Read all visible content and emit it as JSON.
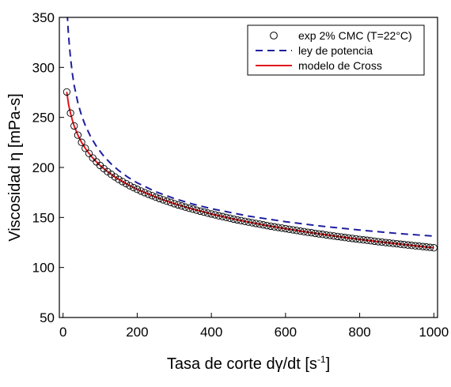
{
  "chart_data": {
    "type": "scatter",
    "xlabel": "Tasa de corte dγ/dt [s-1]",
    "xlabel_parts": {
      "main": "Tasa de corte dγ/dt [s",
      "sup": "-1",
      "close": "]"
    },
    "ylabel": "Viscosidad η [mPa-s]",
    "xlim": [
      -10,
      1010
    ],
    "ylim": [
      50,
      350
    ],
    "x_ticks": [
      0,
      200,
      400,
      600,
      800,
      1000
    ],
    "y_ticks": [
      50,
      100,
      150,
      200,
      250,
      300,
      350
    ],
    "grid": false,
    "legend_position": "top-right",
    "colors": {
      "experimental": "#000000",
      "power_law": "#1f1f9e",
      "cross": "#e0161b"
    },
    "series": [
      {
        "name": "exp 2% CMC (T=22°C)",
        "style": "open-circles",
        "x": [
          10,
          20,
          30,
          40,
          50,
          60,
          70,
          80,
          90,
          100,
          110,
          120,
          130,
          140,
          150,
          160,
          170,
          180,
          190,
          200,
          210,
          220,
          230,
          240,
          250,
          260,
          270,
          280,
          290,
          300,
          310,
          320,
          330,
          340,
          350,
          360,
          370,
          380,
          390,
          400,
          410,
          420,
          430,
          440,
          450,
          460,
          470,
          480,
          490,
          500,
          510,
          520,
          530,
          540,
          550,
          560,
          570,
          580,
          590,
          600,
          610,
          620,
          630,
          640,
          650,
          660,
          670,
          680,
          690,
          700,
          710,
          720,
          730,
          740,
          750,
          760,
          770,
          780,
          790,
          800,
          810,
          820,
          830,
          840,
          850,
          860,
          870,
          880,
          890,
          900,
          910,
          920,
          930,
          940,
          950,
          960,
          970,
          980,
          990,
          1000
        ],
        "y": [
          275.5,
          254.3,
          241.5,
          232.3,
          225.1,
          219.1,
          214.0,
          209.5,
          205.6,
          202.0,
          198.8,
          195.8,
          193.1,
          190.5,
          188.1,
          185.9,
          183.8,
          181.8,
          179.9,
          178.1,
          176.4,
          174.8,
          173.2,
          171.7,
          170.3,
          168.9,
          167.6,
          166.3,
          165.0,
          163.8,
          162.6,
          161.5,
          160.4,
          159.3,
          158.3,
          157.3,
          156.3,
          155.3,
          154.4,
          153.5,
          152.6,
          151.7,
          150.9,
          150.0,
          149.2,
          148.4,
          147.6,
          146.9,
          146.1,
          145.4,
          144.7,
          144.0,
          143.3,
          142.6,
          141.9,
          141.3,
          140.6,
          140.0,
          139.4,
          138.8,
          138.2,
          137.6,
          137.0,
          136.4,
          135.8,
          135.2,
          134.7,
          134.1,
          133.6,
          133.1,
          132.5,
          132.0,
          131.5,
          131.0,
          130.5,
          130.0,
          129.5,
          129.0,
          128.6,
          128.1,
          127.6,
          127.2,
          126.7,
          126.3,
          125.8,
          125.4,
          124.9,
          124.5,
          124.1,
          123.7,
          123.3,
          122.9,
          122.5,
          122.1,
          121.7,
          121.3,
          120.9,
          120.5,
          120.1,
          119.7
        ]
      },
      {
        "name": "ley de potencia",
        "style": "dashed-line",
        "x": [
          10,
          12,
          14,
          17,
          20,
          25,
          30,
          40,
          50,
          60,
          75,
          90,
          110,
          130,
          150,
          175,
          200,
          250,
          300,
          350,
          400,
          500,
          600,
          700,
          800,
          900,
          1000
        ],
        "y": [
          365.2,
          349.3,
          336.6,
          321.8,
          309.7,
          294.1,
          282.2,
          264.7,
          251.9,
          242.0,
          230.3,
          221.0,
          211.2,
          203.4,
          196.9,
          190.2,
          184.6,
          175.8,
          168.9,
          163.4,
          158.8,
          151.4,
          145.8,
          141.2,
          137.4,
          134.1,
          131.3
        ]
      },
      {
        "name": "modelo de Cross",
        "style": "solid-line",
        "x": [
          10,
          15,
          20,
          25,
          30,
          40,
          50,
          60,
          70,
          80,
          90,
          100,
          120,
          140,
          160,
          180,
          200,
          250,
          300,
          350,
          400,
          450,
          500,
          550,
          600,
          650,
          700,
          750,
          800,
          850,
          900,
          950,
          1000
        ],
        "y": [
          275.5,
          262.7,
          254.3,
          247.4,
          241.5,
          232.3,
          225.1,
          219.1,
          214.0,
          209.5,
          205.6,
          202.0,
          195.8,
          190.5,
          185.9,
          181.8,
          178.1,
          170.3,
          163.8,
          158.3,
          153.5,
          149.2,
          145.4,
          141.9,
          138.8,
          135.8,
          133.1,
          130.5,
          128.1,
          125.8,
          123.7,
          121.7,
          119.7
        ]
      }
    ]
  }
}
